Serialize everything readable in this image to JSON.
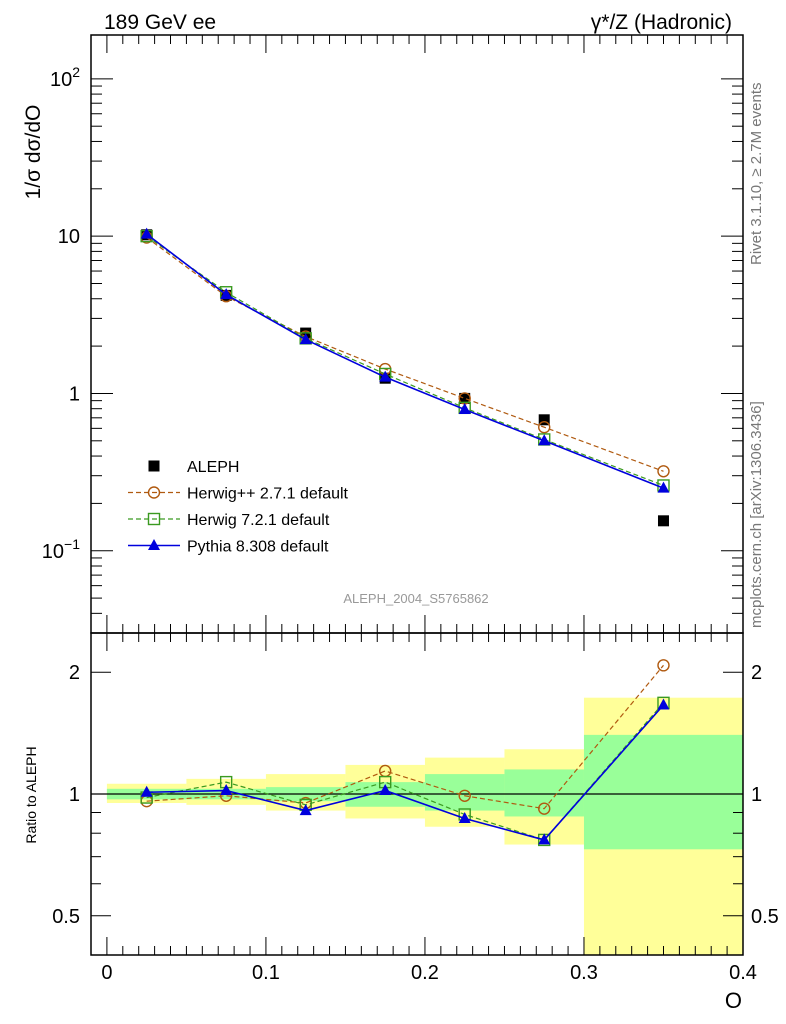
{
  "header": {
    "left_title": "189 GeV ee",
    "right_title": "γ*/Z (Hadronic)"
  },
  "side_labels": {
    "version": "Rivet 3.1.10, ≥ 2.7M events",
    "source": "mcplots.cern.ch [arXiv:1306.3436]"
  },
  "watermark": "ALEPH_2004_S5765862",
  "colors": {
    "data": "#000000",
    "herwigpp": "#b05a10",
    "herwig7": "#3a9a20",
    "pythia": "#0000dd",
    "band_outer": "#ffff99",
    "band_inner": "#99ff99"
  },
  "chart_data": [
    {
      "type": "line",
      "panel": "main",
      "ylabel": "1/σ  dσ/dO",
      "yscale": "log",
      "ylim": [
        0.03,
        190
      ],
      "xlim": [
        -0.01,
        0.4
      ],
      "yticks": [
        {
          "value": 0.1,
          "base": "10",
          "exp": "−1"
        },
        {
          "value": 1,
          "label": "1"
        },
        {
          "value": 10,
          "label": "10"
        },
        {
          "value": 100,
          "base": "10",
          "exp": "2"
        }
      ],
      "x": [
        0.025,
        0.075,
        0.125,
        0.175,
        0.225,
        0.275,
        0.35
      ],
      "series": [
        {
          "name": "ALEPH",
          "key": "data",
          "marker": "filled-square",
          "line": "none",
          "values": [
            10.2,
            4.2,
            2.42,
            1.25,
            0.93,
            0.68,
            0.155
          ]
        },
        {
          "name": "Herwig++ 2.7.1 default",
          "key": "herwigpp",
          "marker": "open-circle",
          "line": "dashed",
          "values": [
            9.8,
            4.15,
            2.3,
            1.43,
            0.93,
            0.61,
            0.32
          ]
        },
        {
          "name": "Herwig 7.2.1 default",
          "key": "herwig7",
          "marker": "open-square",
          "line": "dashed",
          "values": [
            10.0,
            4.4,
            2.24,
            1.33,
            0.81,
            0.51,
            0.26
          ]
        },
        {
          "name": "Pythia 8.308 default",
          "key": "pythia",
          "marker": "filled-triangle",
          "line": "solid",
          "values": [
            10.3,
            4.25,
            2.2,
            1.27,
            0.79,
            0.5,
            0.25
          ]
        }
      ]
    },
    {
      "type": "line",
      "panel": "ratio",
      "ylabel": "Ratio to ALEPH",
      "xlabel": "O",
      "yscale": "log",
      "ylim": [
        0.4,
        2.5
      ],
      "xlim": [
        -0.01,
        0.4
      ],
      "yticks": [
        0.5,
        1,
        2
      ],
      "xticks": [
        0,
        0.1,
        0.2,
        0.3,
        0.4
      ],
      "bands": [
        {
          "x0": 0.0,
          "x1": 0.05,
          "outer": [
            0.95,
            1.06
          ],
          "inner": [
            0.97,
            1.03
          ]
        },
        {
          "x0": 0.05,
          "x1": 0.1,
          "outer": [
            0.94,
            1.09
          ],
          "inner": [
            0.97,
            1.03
          ]
        },
        {
          "x0": 0.1,
          "x1": 0.15,
          "outer": [
            0.91,
            1.12
          ],
          "inner": [
            0.96,
            1.04
          ]
        },
        {
          "x0": 0.15,
          "x1": 0.2,
          "outer": [
            0.87,
            1.18
          ],
          "inner": [
            0.93,
            1.07
          ]
        },
        {
          "x0": 0.2,
          "x1": 0.25,
          "outer": [
            0.83,
            1.23
          ],
          "inner": [
            0.91,
            1.12
          ]
        },
        {
          "x0": 0.25,
          "x1": 0.3,
          "outer": [
            0.75,
            1.29
          ],
          "inner": [
            0.88,
            1.15
          ]
        },
        {
          "x0": 0.3,
          "x1": 0.4,
          "outer": [
            0.4,
            1.73
          ],
          "inner": [
            0.73,
            1.4
          ]
        }
      ],
      "x": [
        0.025,
        0.075,
        0.125,
        0.175,
        0.225,
        0.275,
        0.35
      ],
      "series": [
        {
          "name": "Herwig++ 2.7.1 default",
          "key": "herwigpp",
          "marker": "open-circle",
          "line": "dashed",
          "values": [
            0.96,
            0.99,
            0.95,
            1.14,
            0.99,
            0.92,
            2.08
          ]
        },
        {
          "name": "Herwig 7.2.1 default",
          "key": "herwig7",
          "marker": "open-square",
          "line": "dashed",
          "values": [
            0.98,
            1.07,
            0.94,
            1.07,
            0.89,
            0.77,
            1.68
          ]
        },
        {
          "name": "Pythia 8.308 default",
          "key": "pythia",
          "marker": "filled-triangle",
          "line": "solid",
          "values": [
            1.01,
            1.02,
            0.91,
            1.02,
            0.87,
            0.77,
            1.66
          ]
        }
      ]
    }
  ]
}
